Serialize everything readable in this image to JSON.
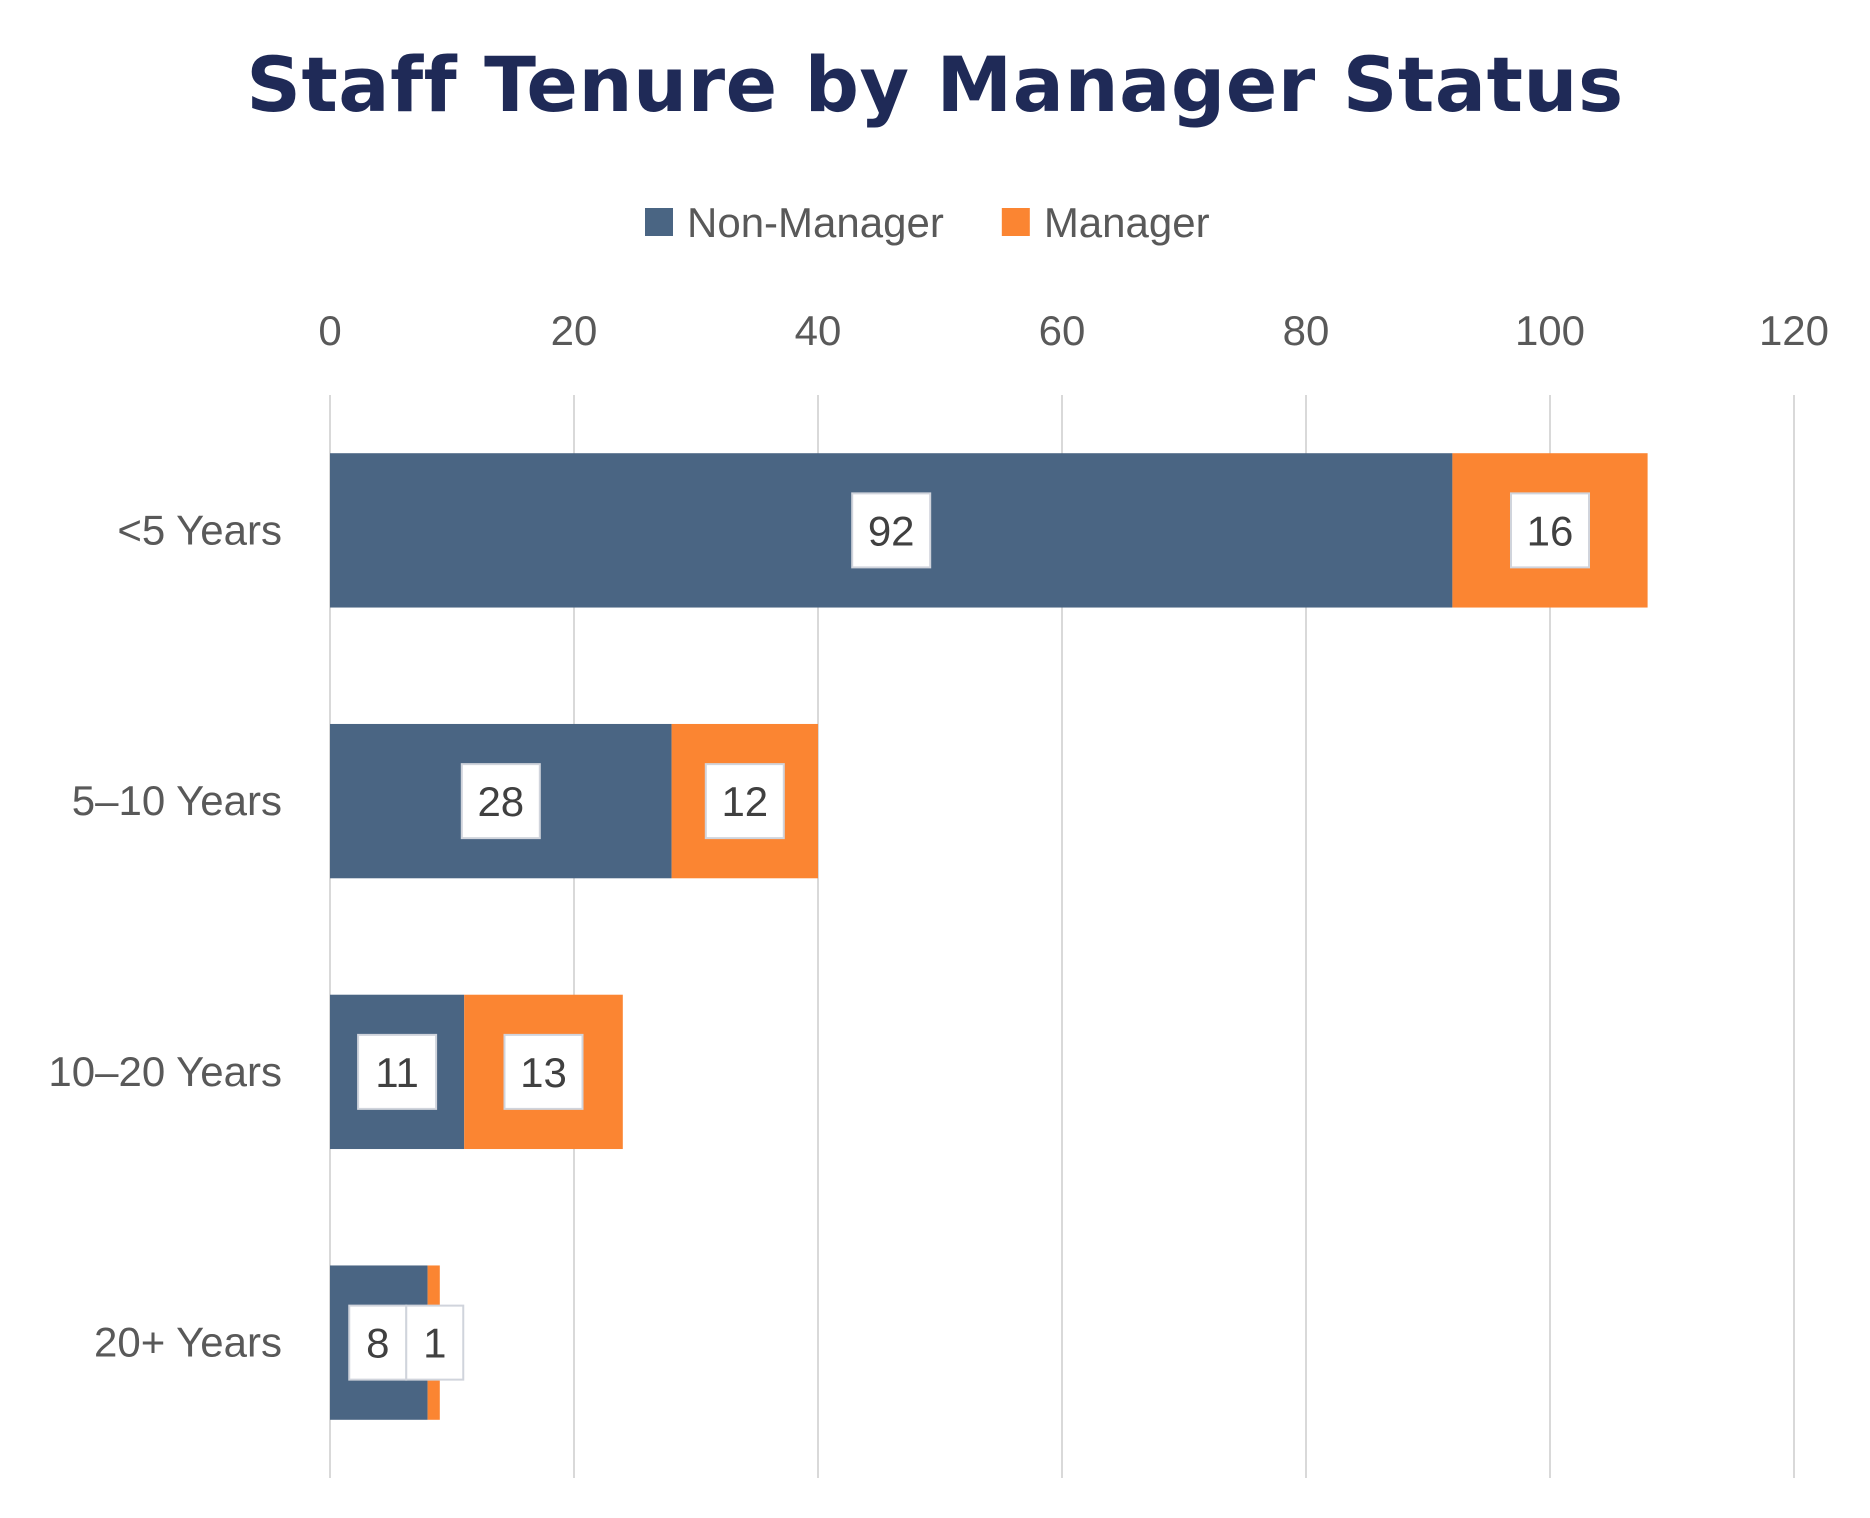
{
  "chart_data": {
    "type": "bar",
    "orientation": "horizontal",
    "stacked": true,
    "title": "Staff Tenure by Manager Status",
    "categories": [
      "<5 Years",
      "5–10 Years",
      "10–20 Years",
      "20+ Years"
    ],
    "series": [
      {
        "name": "Non-Manager",
        "values": [
          92,
          28,
          11,
          8
        ],
        "color": "#4a6583"
      },
      {
        "name": "Manager",
        "values": [
          16,
          12,
          13,
          1
        ],
        "color": "#fb8532"
      }
    ],
    "xlim": [
      0,
      120
    ],
    "xticks": [
      0,
      20,
      40,
      60,
      80,
      100,
      120
    ],
    "x_axis_position": "top",
    "grid": true,
    "legend_position": "top",
    "data_labels": true
  }
}
